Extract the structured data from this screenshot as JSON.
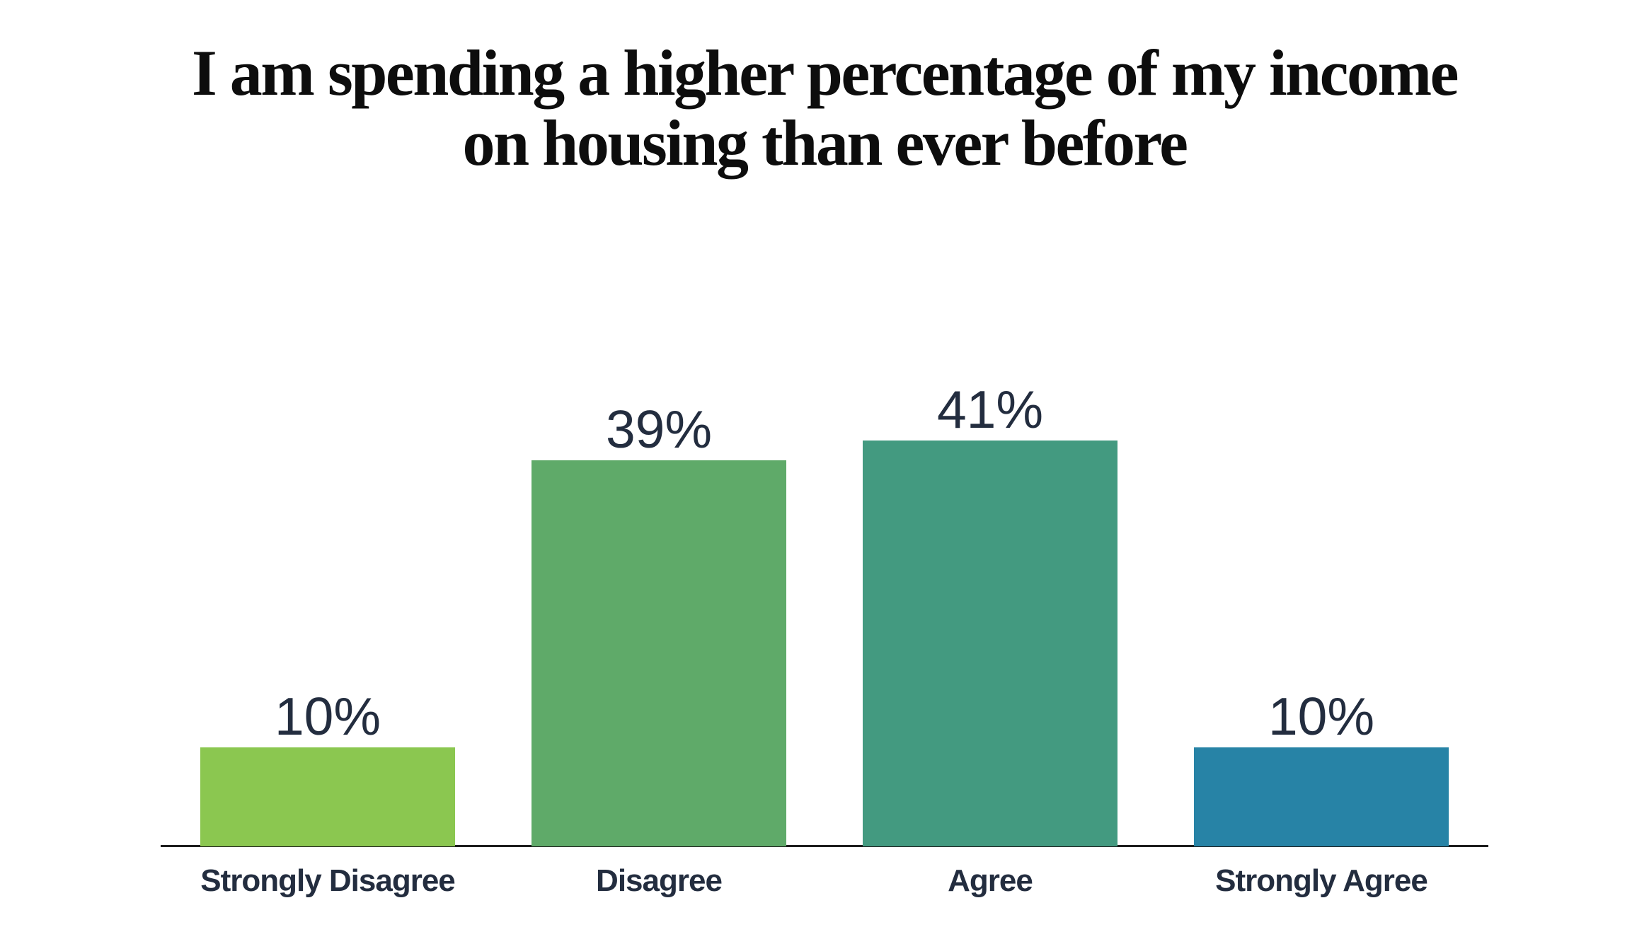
{
  "title": {
    "line1": "I am spending a higher percentage of my income",
    "line2": "on housing than ever before"
  },
  "colors": {
    "title_text": "#0d0d0d",
    "label_text": "#232d3f",
    "axis_line": "#1e1e1e",
    "background": "#ffffff",
    "bar_strongly_disagree": "#8bc750",
    "bar_disagree": "#5faa69",
    "bar_agree": "#439a80",
    "bar_strongly_agree": "#2783a6"
  },
  "chart_data": {
    "type": "bar",
    "title": "I am spending a higher percentage of my income on housing than ever before",
    "categories": [
      "Strongly Disagree",
      "Disagree",
      "Agree",
      "Strongly Agree"
    ],
    "values": [
      10,
      39,
      41,
      10
    ],
    "value_labels": [
      "10%",
      "39%",
      "41%",
      "10%"
    ],
    "bar_colors": [
      "#8bc750",
      "#5faa69",
      "#439a80",
      "#2783a6"
    ],
    "unit": "percent",
    "xlabel": "",
    "ylabel": "",
    "ylim": [
      0,
      45
    ],
    "grid": false,
    "legend": null,
    "y_axis_visible": false,
    "baseline_axis_visible": true,
    "value_label_position": "above-bar"
  }
}
